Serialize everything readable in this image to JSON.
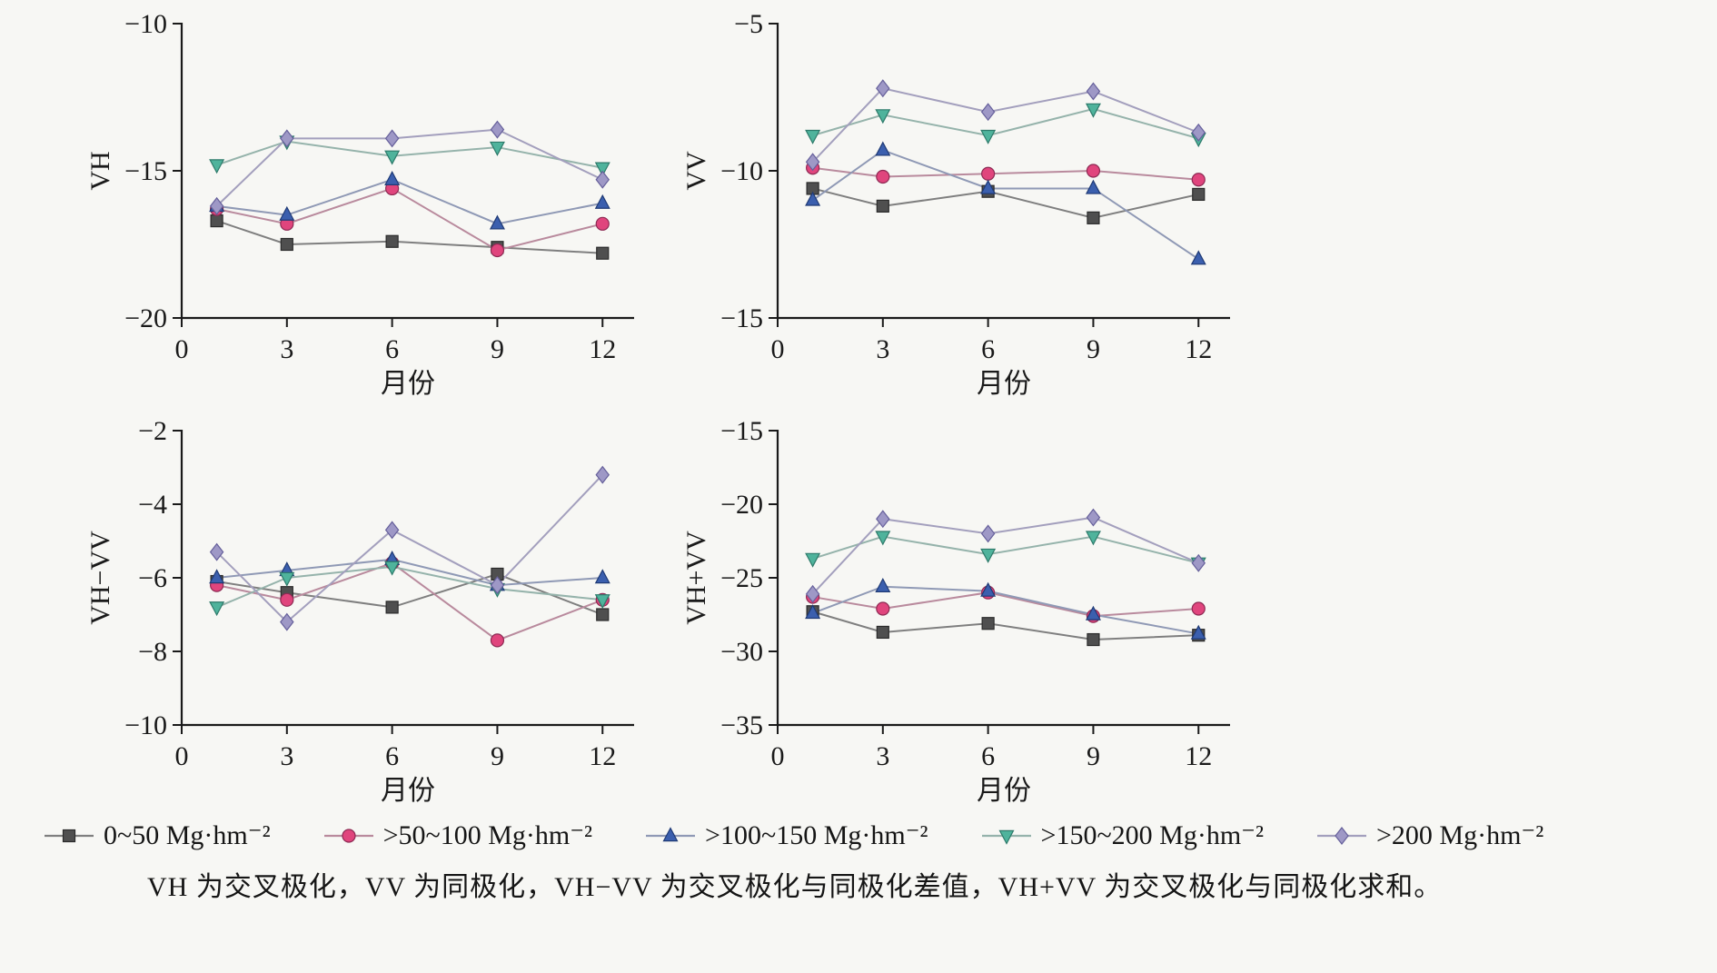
{
  "colors": {
    "background": "#f7f7f4",
    "axis": "#1a1a1a"
  },
  "caption": "VH 为交叉极化，VV 为同极化，VH−VV 为交叉极化与同极化差值，VH+VV 为交叉极化与同极化求和。",
  "legend": {
    "items": [
      {
        "label": "0~50 Mg·hm⁻²",
        "marker": "square",
        "color": "#4f4f4f",
        "edge": "#2b2b2b",
        "line_color": "#7f7f7f"
      },
      {
        "label": ">50~100 Mg·hm⁻²",
        "marker": "circle",
        "color": "#e0457d",
        "edge": "#8d2a53",
        "line_color": "#b98a9d"
      },
      {
        "label": ">100~150 Mg·hm⁻²",
        "marker": "triangle-up",
        "color": "#3b5fae",
        "edge": "#1f3a75",
        "line_color": "#8f99b5"
      },
      {
        "label": ">150~200 Mg·hm⁻²",
        "marker": "triangle-down",
        "color": "#4fb39c",
        "edge": "#2d7a6a",
        "line_color": "#95b3ab"
      },
      {
        "label": ">200 Mg·hm⁻²",
        "marker": "diamond",
        "color": "#9e98c6",
        "edge": "#66609b",
        "line_color": "#a39fbd"
      }
    ]
  },
  "chart_data": [
    {
      "type": "line",
      "ylabel": "VH",
      "xlabel": "月份",
      "x": [
        1,
        3,
        6,
        9,
        12
      ],
      "xticks": [
        0,
        3,
        6,
        9,
        12
      ],
      "xlim": [
        0,
        12.9
      ],
      "ylim": [
        -20,
        -10
      ],
      "yticks": [
        -10,
        -15,
        -20
      ],
      "series": [
        {
          "name": "0~50 Mg·hm⁻²",
          "values": [
            -16.7,
            -17.5,
            -17.4,
            -17.6,
            -17.8
          ]
        },
        {
          "name": ">50~100 Mg·hm⁻²",
          "values": [
            -16.3,
            -16.8,
            -15.6,
            -17.7,
            -16.8
          ]
        },
        {
          "name": ">100~150 Mg·hm⁻²",
          "values": [
            -16.2,
            -16.5,
            -15.3,
            -16.8,
            -16.1
          ]
        },
        {
          "name": ">150~200 Mg·hm⁻²",
          "values": [
            -14.8,
            -14.0,
            -14.5,
            -14.2,
            -14.9
          ]
        },
        {
          "name": ">200 Mg·hm⁻²",
          "values": [
            -16.2,
            -13.9,
            -13.9,
            -13.6,
            -15.3
          ]
        }
      ]
    },
    {
      "type": "line",
      "ylabel": "VV",
      "xlabel": "月份",
      "x": [
        1,
        3,
        6,
        9,
        12
      ],
      "xticks": [
        0,
        3,
        6,
        9,
        12
      ],
      "xlim": [
        0,
        12.9
      ],
      "ylim": [
        -15,
        -5
      ],
      "yticks": [
        -5,
        -10,
        -15
      ],
      "series": [
        {
          "name": "0~50 Mg·hm⁻²",
          "values": [
            -10.6,
            -11.2,
            -10.7,
            -11.6,
            -10.8
          ]
        },
        {
          "name": ">50~100 Mg·hm⁻²",
          "values": [
            -9.9,
            -10.2,
            -10.1,
            -10.0,
            -10.3
          ]
        },
        {
          "name": ">100~150 Mg·hm⁻²",
          "values": [
            -11.0,
            -9.3,
            -10.6,
            -10.6,
            -13.0
          ]
        },
        {
          "name": ">150~200 Mg·hm⁻²",
          "values": [
            -8.8,
            -8.1,
            -8.8,
            -7.9,
            -8.9
          ]
        },
        {
          "name": ">200 Mg·hm⁻²",
          "values": [
            -9.7,
            -7.2,
            -8.0,
            -7.3,
            -8.7
          ]
        }
      ]
    },
    {
      "type": "line",
      "ylabel": "VH−VV",
      "xlabel": "月份",
      "x": [
        1,
        3,
        6,
        9,
        12
      ],
      "xticks": [
        0,
        3,
        6,
        9,
        12
      ],
      "xlim": [
        0,
        12.9
      ],
      "ylim": [
        -10,
        -2
      ],
      "yticks": [
        -2,
        -4,
        -6,
        -8,
        -10
      ],
      "series": [
        {
          "name": "0~50 Mg·hm⁻²",
          "values": [
            -6.1,
            -6.4,
            -6.8,
            -5.9,
            -7.0
          ]
        },
        {
          "name": ">50~100 Mg·hm⁻²",
          "values": [
            -6.2,
            -6.6,
            -5.6,
            -7.7,
            -6.6
          ]
        },
        {
          "name": ">100~150 Mg·hm⁻²",
          "values": [
            -6.0,
            -5.8,
            -5.5,
            -6.2,
            -6.0
          ]
        },
        {
          "name": ">150~200 Mg·hm⁻²",
          "values": [
            -6.8,
            -6.0,
            -5.7,
            -6.3,
            -6.6
          ]
        },
        {
          "name": ">200 Mg·hm⁻²",
          "values": [
            -5.3,
            -7.2,
            -4.7,
            -6.2,
            -3.2
          ]
        }
      ]
    },
    {
      "type": "line",
      "ylabel": "VH+VV",
      "xlabel": "月份",
      "x": [
        1,
        3,
        6,
        9,
        12
      ],
      "xticks": [
        0,
        3,
        6,
        9,
        12
      ],
      "xlim": [
        0,
        12.9
      ],
      "ylim": [
        -35,
        -15
      ],
      "yticks": [
        -15,
        -20,
        -25,
        -30,
        -35
      ],
      "series": [
        {
          "name": "0~50 Mg·hm⁻²",
          "values": [
            -27.3,
            -28.7,
            -28.1,
            -29.2,
            -28.9
          ]
        },
        {
          "name": ">50~100 Mg·hm⁻²",
          "values": [
            -26.3,
            -27.1,
            -26.0,
            -27.6,
            -27.1
          ]
        },
        {
          "name": ">100~150 Mg·hm⁻²",
          "values": [
            -27.4,
            -25.6,
            -25.9,
            -27.5,
            -28.8
          ]
        },
        {
          "name": ">150~200 Mg·hm⁻²",
          "values": [
            -23.7,
            -22.2,
            -23.4,
            -22.2,
            -24.0
          ]
        },
        {
          "name": ">200 Mg·hm⁻²",
          "values": [
            -26.1,
            -21.0,
            -22.0,
            -20.9,
            -24.0
          ]
        }
      ]
    }
  ]
}
